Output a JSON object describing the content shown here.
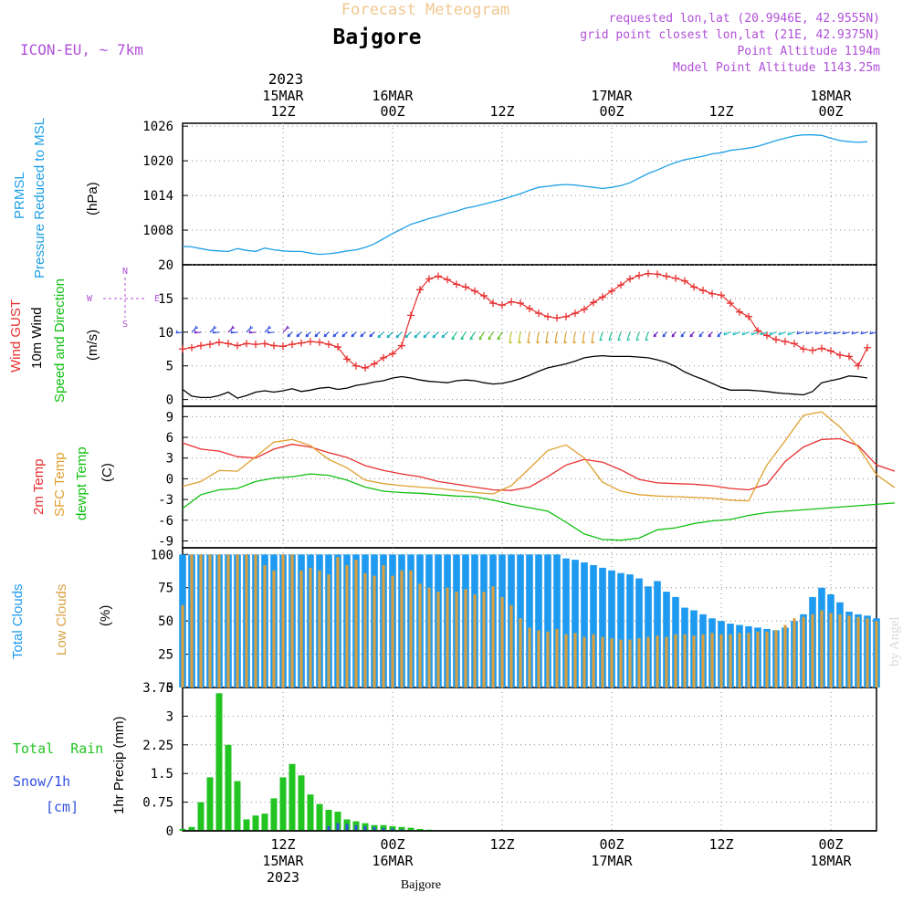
{
  "header": {
    "product_title": "Forecast Meteogram",
    "location": "Bajgore",
    "model": "ICON-EU, ~ 7km",
    "requested": "requested lon,lat (20.9946E, 42.9555N)",
    "grid_point": "grid point closest lon,lat (21E, 42.9375N)",
    "point_altitude": "Point Altitude 1194m",
    "model_altitude": "Model Point Altitude 1143.25m",
    "footer_location": "Bajgore",
    "watermark": "by Angel"
  },
  "time_axis": {
    "top_year": "2023",
    "labels": [
      {
        "hour": 12,
        "l1": "15MAR",
        "l2": "12Z"
      },
      {
        "hour": 24,
        "l1": "16MAR",
        "l2": "00Z"
      },
      {
        "hour": 36,
        "l1": "",
        "l2": "12Z"
      },
      {
        "hour": 48,
        "l1": "17MAR",
        "l2": "00Z"
      },
      {
        "hour": 60,
        "l1": "",
        "l2": "12Z"
      },
      {
        "hour": 72,
        "l1": "18MAR",
        "l2": "00Z"
      }
    ],
    "bottom_labels": [
      {
        "hour": 12,
        "l1": "12Z",
        "l2": "15MAR",
        "l3": "2023"
      },
      {
        "hour": 24,
        "l1": "00Z",
        "l2": "16MAR",
        "l3": ""
      },
      {
        "hour": 36,
        "l1": "12Z",
        "l2": "",
        "l3": ""
      },
      {
        "hour": 48,
        "l1": "00Z",
        "l2": "17MAR",
        "l3": ""
      },
      {
        "hour": 60,
        "l1": "12Z",
        "l2": "",
        "l3": ""
      },
      {
        "hour": 72,
        "l1": "00Z",
        "l2": "18MAR",
        "l3": ""
      }
    ]
  },
  "panel_labels": {
    "pressure": [
      "PRMSL",
      "Pressure Reduced to MSL",
      "(hPa)"
    ],
    "wind": [
      "Wind GUST",
      "10m Wind",
      "Speed and Direction",
      "(m/s)"
    ],
    "compass": {
      "n": "N",
      "s": "S",
      "w": "W",
      "e": "E"
    },
    "temp": [
      "2m Temp",
      "SFC Temp",
      "dewpt Temp",
      "(C)"
    ],
    "clouds": [
      "Total Clouds",
      "Low Clouds",
      "(%)"
    ],
    "precip": [
      "Total  Rain",
      "Snow/1h",
      "[cm]",
      "1hr Precip (mm)"
    ]
  },
  "colors": {
    "pressure": "#1ea0e6",
    "gust": "#e83030",
    "wind10": "#000000",
    "t2m": "#e83030",
    "sfc": "#e0a030",
    "dew": "#10c010",
    "total_cloud": "#1e9bf0",
    "low_cloud": "#d8a040",
    "rain": "#22c422",
    "snow": "#3050e0",
    "header_title": "#f0c890",
    "header_info": "#b050d8"
  },
  "chart_data": [
    {
      "type": "line",
      "title": "PRMSL Pressure Reduced to MSL",
      "ylabel": "(hPa)",
      "ylim": [
        1002,
        1026.5
      ],
      "yticks": [
        1008,
        1014,
        1020,
        1026
      ],
      "xlim": [
        1,
        77
      ],
      "series": [
        {
          "name": "PRMSL",
          "x_start": 1,
          "x_step": 1,
          "values": [
            1005.2,
            1005.1,
            1004.8,
            1004.5,
            1004.4,
            1004.3,
            1004.8,
            1004.5,
            1004.3,
            1004.9,
            1004.6,
            1004.4,
            1004.3,
            1004.3,
            1004.0,
            1003.8,
            1003.9,
            1004.1,
            1004.4,
            1004.6,
            1005.0,
            1005.6,
            1006.5,
            1007.4,
            1008.2,
            1009.0,
            1009.5,
            1010.0,
            1010.4,
            1010.9,
            1011.3,
            1011.8,
            1012.1,
            1012.5,
            1012.9,
            1013.3,
            1013.8,
            1014.3,
            1014.9,
            1015.4,
            1015.6,
            1015.8,
            1015.9,
            1015.8,
            1015.6,
            1015.4,
            1015.2,
            1015.4,
            1015.7,
            1016.2,
            1017.0,
            1017.8,
            1018.4,
            1019.1,
            1019.7,
            1020.2,
            1020.5,
            1020.8,
            1021.2,
            1021.4,
            1021.8,
            1022.0,
            1022.2,
            1022.5,
            1023.0,
            1023.5,
            1023.9,
            1024.3,
            1024.5,
            1024.5,
            1024.4,
            1023.9,
            1023.5,
            1023.3,
            1023.2,
            1023.3
          ]
        }
      ]
    },
    {
      "type": "line",
      "title": "Wind GUST / 10m Wind Speed and Direction",
      "ylabel": "(m/s)",
      "ylim": [
        -1,
        20
      ],
      "yticks": [
        0,
        5,
        10,
        15,
        20
      ],
      "xlim": [
        1,
        77
      ],
      "series": [
        {
          "name": "Wind GUST",
          "x_start": 1,
          "x_step": 1,
          "values": [
            7.5,
            7.7,
            8.0,
            8.2,
            8.5,
            8.3,
            8.0,
            8.3,
            8.2,
            8.3,
            8.0,
            7.9,
            8.2,
            8.4,
            8.6,
            8.5,
            8.2,
            7.8,
            6.0,
            5.0,
            4.7,
            5.3,
            6.2,
            6.8,
            8.0,
            12.5,
            16.3,
            17.9,
            18.3,
            17.8,
            17.1,
            16.7,
            16.1,
            15.4,
            14.3,
            14.0,
            14.5,
            14.3,
            13.5,
            12.8,
            12.3,
            12.1,
            12.3,
            12.8,
            13.4,
            14.4,
            15.2,
            16.1,
            17.0,
            17.9,
            18.4,
            18.7,
            18.6,
            18.3,
            18.0,
            17.6,
            16.7,
            16.2,
            15.7,
            15.5,
            14.3,
            13.0,
            12.3,
            10.2,
            9.5,
            8.9,
            8.6,
            8.3,
            7.5,
            7.3,
            7.6,
            7.2,
            6.6,
            6.4,
            5.0,
            7.7
          ]
        },
        {
          "name": "10m Wind",
          "x_start": 1,
          "x_step": 1,
          "values": [
            1.5,
            0.5,
            0.3,
            0.3,
            0.6,
            1.1,
            0.2,
            0.6,
            1.1,
            1.3,
            1.1,
            1.3,
            1.6,
            1.2,
            1.4,
            1.7,
            1.8,
            1.5,
            1.7,
            2.1,
            2.3,
            2.6,
            2.8,
            3.2,
            3.4,
            3.2,
            2.9,
            2.7,
            2.6,
            2.5,
            2.8,
            2.9,
            2.8,
            2.5,
            2.3,
            2.4,
            2.7,
            3.1,
            3.6,
            4.2,
            4.7,
            5.0,
            5.3,
            5.7,
            6.2,
            6.4,
            6.5,
            6.4,
            6.4,
            6.4,
            6.3,
            6.2,
            5.9,
            5.5,
            4.9,
            4.1,
            3.5,
            3.0,
            2.4,
            1.8,
            1.4,
            1.4,
            1.4,
            1.3,
            1.2,
            1.0,
            0.9,
            0.8,
            0.7,
            1.2,
            2.5,
            2.8,
            3.1,
            3.5,
            3.4,
            3.2
          ]
        }
      ]
    },
    {
      "type": "line",
      "title": "2m Temp / SFC Temp / dewpt Temp",
      "ylabel": "(C)",
      "ylim": [
        -10,
        10.5
      ],
      "yticks": [
        -9,
        -6,
        -3,
        0,
        3,
        6,
        9
      ],
      "xlim": [
        1,
        77
      ],
      "series": [
        {
          "name": "2m Temp",
          "x_start": 1,
          "x_step": 2,
          "values": [
            5.2,
            4.3,
            4.0,
            3.2,
            3.0,
            4.3,
            5.0,
            4.6,
            3.8,
            3.1,
            1.9,
            1.2,
            0.7,
            0.3,
            -0.4,
            -0.8,
            -1.2,
            -1.6,
            -1.7,
            -1.2,
            0.3,
            2.0,
            2.8,
            2.4,
            1.3,
            -0.1,
            -0.6,
            -0.7,
            -0.8,
            -1.0,
            -1.4,
            -1.6,
            -0.8,
            2.5,
            4.6,
            5.7,
            5.8,
            4.8,
            2.0,
            1.1
          ]
        },
        {
          "name": "SFC Temp",
          "x_start": 1,
          "x_step": 2,
          "values": [
            -1.1,
            -0.4,
            1.2,
            1.1,
            3.2,
            5.3,
            5.7,
            4.8,
            2.8,
            1.6,
            -0.2,
            -0.7,
            -1.0,
            -1.2,
            -1.4,
            -1.7,
            -2.0,
            -2.2,
            -1.0,
            1.5,
            4.1,
            4.9,
            3.0,
            -0.5,
            -1.8,
            -2.3,
            -2.5,
            -2.6,
            -2.7,
            -2.8,
            -3.1,
            -3.2,
            2.0,
            5.5,
            9.2,
            9.7,
            7.5,
            4.6,
            0.6,
            -1.3
          ]
        },
        {
          "name": "dewpt Temp",
          "x_start": 1,
          "x_step": 2,
          "values": [
            -4.3,
            -2.3,
            -1.6,
            -1.4,
            -0.4,
            0.1,
            0.3,
            0.7,
            0.5,
            -0.2,
            -1.2,
            -1.8,
            -2.0,
            -2.1,
            -2.3,
            -2.5,
            -2.6,
            -3.1,
            -3.7,
            -4.2,
            -4.7,
            -6.3,
            -8.0,
            -8.8,
            -8.9,
            -8.6,
            -7.4,
            -7.1,
            -6.5,
            -6.1,
            -5.9,
            -5.3,
            -4.9,
            -4.7,
            -4.5,
            -4.3,
            -4.1,
            -3.9,
            -3.7,
            -3.5
          ]
        }
      ]
    },
    {
      "type": "bar",
      "title": "Total Clouds / Low Clouds",
      "ylabel": "(%)",
      "ylim": [
        0,
        105
      ],
      "yticks": [
        0,
        25,
        50,
        75,
        100
      ],
      "xlim": [
        1,
        77
      ],
      "series": [
        {
          "name": "Total Clouds",
          "x_start": 1,
          "x_step": 1,
          "values": [
            100,
            100,
            100,
            100,
            100,
            100,
            100,
            100,
            100,
            100,
            100,
            100,
            100,
            100,
            100,
            100,
            100,
            100,
            100,
            100,
            100,
            100,
            100,
            100,
            100,
            100,
            100,
            100,
            100,
            100,
            100,
            100,
            100,
            100,
            100,
            100,
            100,
            100,
            100,
            100,
            100,
            100,
            97,
            96,
            94,
            92,
            90,
            88,
            86,
            85,
            82,
            76,
            80,
            72,
            68,
            60,
            58,
            55,
            52,
            50,
            48,
            47,
            46,
            45,
            44,
            43,
            45,
            50,
            55,
            68,
            75,
            70,
            64,
            57,
            55,
            54,
            52
          ]
        },
        {
          "name": "Low Clouds",
          "x_start": 1,
          "x_step": 1,
          "values": [
            62,
            100,
            100,
            100,
            100,
            100,
            100,
            100,
            100,
            92,
            88,
            100,
            100,
            88,
            90,
            88,
            85,
            98,
            92,
            96,
            86,
            84,
            92,
            84,
            88,
            88,
            78,
            75,
            72,
            75,
            72,
            74,
            70,
            72,
            76,
            68,
            62,
            52,
            45,
            43,
            42,
            44,
            40,
            41,
            38,
            40,
            38,
            37,
            36,
            36,
            37,
            38,
            39,
            38,
            40,
            40,
            39,
            40,
            41,
            40,
            40,
            41,
            41,
            42,
            42,
            43,
            47,
            52,
            53,
            55,
            58,
            56,
            55,
            54,
            53,
            52,
            50
          ]
        }
      ]
    },
    {
      "type": "bar",
      "title": "Total Rain / Snow 1h",
      "ylabel": "1hr Precip (mm)",
      "ylim": [
        0,
        3.75
      ],
      "yticks": [
        0,
        0.75,
        1.5,
        2.25,
        3,
        3.75
      ],
      "xlim": [
        1,
        77
      ],
      "series": [
        {
          "name": "Total Rain",
          "x_start": 1,
          "x_step": 1,
          "values": [
            0.05,
            0.1,
            0.75,
            1.4,
            3.6,
            2.25,
            1.3,
            0.3,
            0.4,
            0.45,
            0.85,
            1.4,
            1.75,
            1.45,
            0.95,
            0.7,
            0.55,
            0.5,
            0.3,
            0.25,
            0.2,
            0.15,
            0.15,
            0.12,
            0.1,
            0.08,
            0.05,
            0.03,
            0,
            0,
            0,
            0,
            0,
            0,
            0,
            0,
            0,
            0,
            0,
            0,
            0,
            0,
            0,
            0,
            0,
            0,
            0,
            0,
            0,
            0,
            0,
            0,
            0,
            0,
            0,
            0,
            0,
            0,
            0,
            0,
            0,
            0,
            0,
            0,
            0,
            0,
            0,
            0,
            0,
            0,
            0,
            0,
            0,
            0,
            0,
            0,
            0
          ]
        },
        {
          "name": "Snow/1h",
          "x_start": 1,
          "x_step": 1,
          "values": [
            0,
            0,
            0,
            0,
            0,
            0,
            0,
            0,
            0,
            0,
            0,
            0,
            0,
            0,
            0,
            0,
            0.12,
            0.2,
            0.18,
            0.15,
            0.12,
            0.1,
            0.08,
            0.06,
            0.04,
            0.02,
            0,
            0,
            0,
            0,
            0,
            0,
            0,
            0,
            0,
            0,
            0,
            0,
            0,
            0,
            0,
            0,
            0,
            0,
            0,
            0,
            0,
            0,
            0,
            0,
            0,
            0,
            0,
            0,
            0,
            0,
            0,
            0,
            0,
            0,
            0,
            0,
            0,
            0,
            0,
            0,
            0,
            0,
            0,
            0,
            0,
            0,
            0,
            0,
            0,
            0,
            0
          ]
        }
      ]
    }
  ]
}
